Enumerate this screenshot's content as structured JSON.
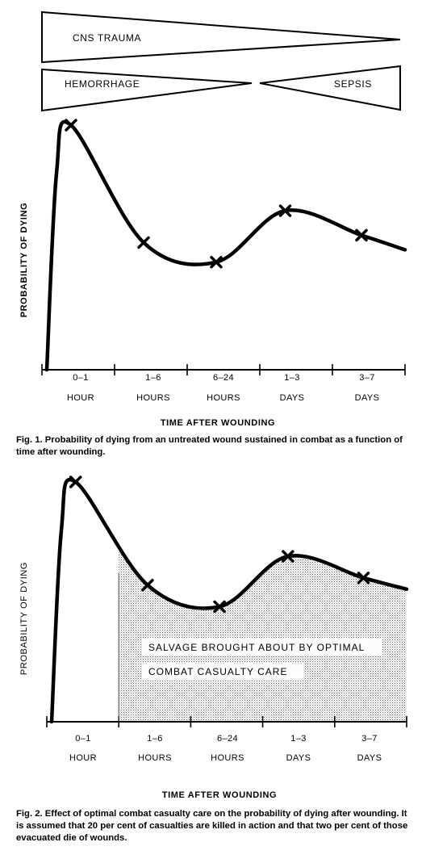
{
  "fig1": {
    "wedges": {
      "cns": "CNS TRAUMA",
      "hemorrhage": "HEMORRHAGE",
      "sepsis": "SEPSIS"
    },
    "ylabel": "PROBABILITY OF DYING",
    "xlabel": "TIME AFTER WOUNDING",
    "caption": "Fig. 1. Probability of dying from an untreated wound sustained in combat as a function of time after wounding."
  },
  "fig2": {
    "ylabel": "PROBABILITY OF DYING",
    "xlabel": "TIME AFTER WOUNDING",
    "caption": "Fig. 2. Effect of optimal combat casualty care on the probability of dying after wounding. It is assumed that 20 per cent of casualties are killed in action and that two per cent of those evacuated die of wounds.",
    "annotation": [
      "SALVAGE BROUGHT ABOUT BY OPTIMAL",
      "COMBAT CASUALTY CARE"
    ]
  },
  "chart_data": [
    {
      "type": "line",
      "categories": [
        [
          "0–1",
          "HOUR"
        ],
        [
          "1–6",
          "HOURS"
        ],
        [
          "6–24",
          "HOURS"
        ],
        [
          "1–3",
          "DAYS"
        ],
        [
          "3–7",
          "DAYS"
        ]
      ],
      "x": [
        0.4,
        1.4,
        2.4,
        3.35,
        4.4
      ],
      "values": [
        1.0,
        0.52,
        0.44,
        0.65,
        0.55
      ],
      "xlabel": "TIME AFTER WOUNDING",
      "ylabel": "PROBABILITY OF DYING",
      "ylim": [
        0,
        1
      ],
      "grid": false
    },
    {
      "type": "area",
      "categories": [
        [
          "0–1",
          "HOUR"
        ],
        [
          "1–6",
          "HOURS"
        ],
        [
          "6–24",
          "HOURS"
        ],
        [
          "1–3",
          "DAYS"
        ],
        [
          "3–7",
          "DAYS"
        ]
      ],
      "x": [
        0.4,
        1.4,
        2.4,
        3.35,
        4.4
      ],
      "values": [
        1.0,
        0.57,
        0.48,
        0.69,
        0.6
      ],
      "shaded_from_x": 1.0,
      "xlabel": "TIME AFTER WOUNDING",
      "ylabel": "PROBABILITY OF DYING",
      "ylim": [
        0,
        1
      ],
      "grid": false
    }
  ]
}
